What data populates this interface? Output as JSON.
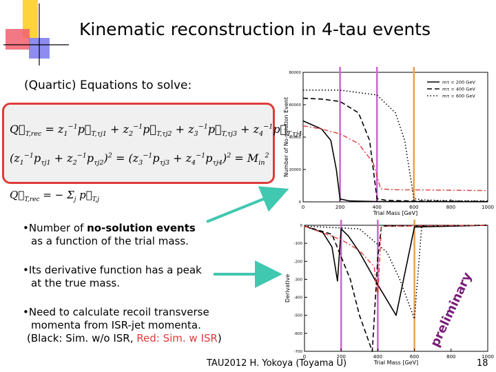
{
  "title": "Kinematic reconstruction in 4-tau events",
  "subtitle": "(Quartic) Equations to solve:",
  "bullets": {
    "b1_pre": "•Number of ",
    "b1_bold": "no-solution events",
    "b1_line2": "as a function of the trial mass.",
    "b2_line1": "•Its derivative function has a peak",
    "b2_line2": "at the true mass.",
    "b3_line1": "•Need to calculate recoil transverse",
    "b3_line2": "momenta from ISR-jet momenta.",
    "b3_line3_a": "(Black: Sim. w/o ISR, ",
    "b3_line3_red": "Red: Sim. w ISR",
    "b3_line3_b": ")"
  },
  "footer": "TAU2012 H. Yokoya (Toyama U)",
  "page_number": "18",
  "watermark": "preliminary",
  "colors": {
    "red": "#e03a3a",
    "vline": "#cc66cc",
    "orange": "#e8a050"
  },
  "chart_data": [
    {
      "type": "line",
      "xlabel": "Trial Mass [GeV]",
      "ylabel": "Number of No-solution Event",
      "xticks": [
        "0",
        "200",
        "400",
        "600",
        "800",
        "1000"
      ],
      "yticks": [
        "0",
        "20000",
        "40000",
        "60000",
        "80000"
      ],
      "xlim": [
        0,
        1000
      ],
      "ylim": [
        0,
        80000
      ],
      "legend": [
        "mτ = 200 GeV",
        "mτ = 400 GeV",
        "mτ = 600 GeV"
      ],
      "legend_position": "top-right",
      "vlines": [
        200,
        400,
        600
      ],
      "series": [
        {
          "style": "solid",
          "x": [
            0,
            50,
            100,
            150,
            180,
            200,
            250,
            400,
            1000
          ],
          "y": [
            50000,
            47500,
            45000,
            38000,
            20000,
            1800,
            600,
            200,
            100
          ]
        },
        {
          "style": "dashed",
          "x": [
            0,
            100,
            200,
            300,
            360,
            400,
            450,
            600,
            1000
          ],
          "y": [
            64000,
            63500,
            62000,
            55000,
            38000,
            2000,
            900,
            500,
            300
          ]
        },
        {
          "style": "dotted",
          "x": [
            0,
            200,
            400,
            500,
            550,
            600,
            650,
            800,
            1000
          ],
          "y": [
            69000,
            69000,
            66000,
            55000,
            38000,
            2000,
            1200,
            700,
            500
          ]
        },
        {
          "style": "red-dashdot",
          "x": [
            0,
            100,
            200,
            300,
            380,
            420,
            500,
            1000
          ],
          "y": [
            47000,
            45000,
            42000,
            36000,
            24000,
            8000,
            7500,
            7000
          ]
        }
      ]
    },
    {
      "type": "line",
      "xlabel": "Trial Mass [GeV]",
      "ylabel": "Derivative",
      "xticks": [
        "0",
        "200",
        "400",
        "600",
        "800",
        "1000"
      ],
      "yticks": [
        "0",
        "-100",
        "-200",
        "-300",
        "-400",
        "-500",
        "-600",
        "-700"
      ],
      "xlim": [
        0,
        1000
      ],
      "ylim": [
        -700,
        0
      ],
      "vlines": [
        200,
        400,
        600
      ],
      "series": [
        {
          "style": "solid",
          "x": [
            0,
            100,
            150,
            180,
            200,
            240,
            300,
            400,
            500,
            600,
            1000
          ],
          "y": [
            -5,
            -40,
            -120,
            -310,
            -20,
            -60,
            -150,
            -330,
            -500,
            -10,
            0
          ]
        },
        {
          "style": "dashed",
          "x": [
            0,
            150,
            250,
            300,
            370,
            400,
            420,
            1000
          ],
          "y": [
            -5,
            -50,
            -300,
            -500,
            -700,
            -180,
            -5,
            0
          ]
        },
        {
          "style": "dotted",
          "x": [
            0,
            300,
            450,
            520,
            600,
            640,
            1000
          ],
          "y": [
            -5,
            -20,
            -150,
            -300,
            -520,
            -5,
            0
          ]
        },
        {
          "style": "red-dashdot",
          "x": [
            0,
            200,
            300,
            380,
            400,
            420,
            1000
          ],
          "y": [
            -5,
            -80,
            -140,
            -230,
            -390,
            -5,
            0
          ]
        }
      ]
    }
  ]
}
